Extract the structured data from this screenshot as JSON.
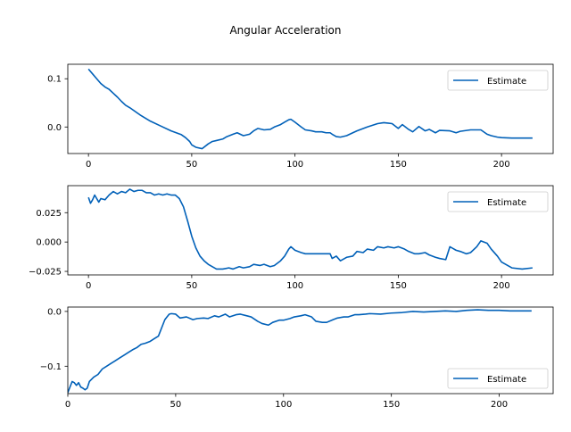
{
  "figure": {
    "title": "Angular Acceleration"
  },
  "colors": {
    "series": "#0060b8"
  },
  "chart_data": [
    {
      "type": "line",
      "title": "",
      "xlabel": "",
      "ylabel": "",
      "xlim": [
        -10,
        225
      ],
      "ylim": [
        -0.055,
        0.13
      ],
      "xticks": [
        0,
        50,
        100,
        150,
        200
      ],
      "yticks": [
        0.1,
        0.0
      ],
      "xtick_labels": [
        "0",
        "50",
        "100",
        "150",
        "200"
      ],
      "ytick_labels": [
        "0.1",
        "0.0"
      ],
      "legend": {
        "placement": "top-right",
        "labels": [
          "Estimate"
        ]
      },
      "grid": false,
      "series": [
        {
          "name": "Estimate",
          "x": [
            0,
            2,
            4,
            6,
            8,
            10,
            12,
            14,
            16,
            18,
            20,
            25,
            30,
            35,
            40,
            45,
            47,
            49,
            50,
            52,
            55,
            58,
            60,
            62,
            65,
            67,
            70,
            72,
            75,
            78,
            80,
            82,
            85,
            88,
            90,
            93,
            95,
            97,
            98,
            100,
            103,
            105,
            108,
            110,
            113,
            115,
            117,
            118,
            120,
            122,
            125,
            128,
            130,
            135,
            140,
            143,
            145,
            147,
            150,
            152,
            155,
            157,
            160,
            163,
            165,
            168,
            170,
            175,
            178,
            180,
            185,
            190,
            193,
            195,
            198,
            200,
            205,
            210,
            215
          ],
          "y": [
            0.12,
            0.11,
            0.1,
            0.09,
            0.083,
            0.078,
            0.07,
            0.062,
            0.053,
            0.045,
            0.04,
            0.025,
            0.012,
            0.002,
            -0.008,
            -0.016,
            -0.022,
            -0.03,
            -0.037,
            -0.042,
            -0.045,
            -0.035,
            -0.03,
            -0.028,
            -0.025,
            -0.02,
            -0.015,
            -0.012,
            -0.018,
            -0.015,
            -0.008,
            -0.003,
            -0.006,
            -0.005,
            0.0,
            0.005,
            0.01,
            0.015,
            0.016,
            0.01,
            0.0,
            -0.006,
            -0.008,
            -0.01,
            -0.01,
            -0.012,
            -0.012,
            -0.015,
            -0.02,
            -0.021,
            -0.018,
            -0.012,
            -0.008,
            0.0,
            0.007,
            0.009,
            0.008,
            0.007,
            -0.003,
            0.005,
            -0.005,
            -0.01,
            0.001,
            -0.008,
            -0.005,
            -0.012,
            -0.007,
            -0.008,
            -0.012,
            -0.009,
            -0.006,
            -0.006,
            -0.015,
            -0.018,
            -0.021,
            -0.022,
            -0.023,
            -0.023,
            -0.023
          ]
        }
      ]
    },
    {
      "type": "line",
      "title": "",
      "xlabel": "",
      "ylabel": "",
      "xlim": [
        -10,
        225
      ],
      "ylim": [
        -0.028,
        0.048
      ],
      "xticks": [
        0,
        50,
        100,
        150,
        200
      ],
      "yticks": [
        0.025,
        0.0,
        -0.025
      ],
      "xtick_labels": [
        "0",
        "50",
        "100",
        "150",
        "200"
      ],
      "ytick_labels": [
        "0.025",
        "0.000",
        "−0.025"
      ],
      "legend": {
        "placement": "top-right",
        "labels": [
          "Estimate"
        ]
      },
      "grid": false,
      "series": [
        {
          "name": "Estimate",
          "x": [
            0,
            1,
            2,
            3,
            4,
            5,
            6,
            8,
            10,
            12,
            14,
            16,
            18,
            20,
            22,
            24,
            26,
            28,
            30,
            32,
            34,
            36,
            38,
            40,
            42,
            44,
            46,
            48,
            50,
            52,
            54,
            56,
            58,
            60,
            62,
            65,
            68,
            70,
            73,
            75,
            78,
            80,
            83,
            85,
            88,
            90,
            93,
            95,
            97,
            98,
            100,
            103,
            105,
            110,
            115,
            117,
            118,
            120,
            122,
            125,
            128,
            130,
            133,
            135,
            138,
            140,
            143,
            145,
            148,
            150,
            153,
            155,
            158,
            160,
            163,
            165,
            168,
            170,
            173,
            175,
            178,
            180,
            183,
            185,
            188,
            190,
            193,
            195,
            198,
            200,
            205,
            210,
            215
          ],
          "y": [
            0.038,
            0.033,
            0.036,
            0.04,
            0.037,
            0.034,
            0.037,
            0.036,
            0.04,
            0.043,
            0.041,
            0.043,
            0.042,
            0.045,
            0.043,
            0.044,
            0.044,
            0.042,
            0.042,
            0.04,
            0.041,
            0.04,
            0.041,
            0.04,
            0.04,
            0.037,
            0.03,
            0.018,
            0.005,
            -0.005,
            -0.012,
            -0.016,
            -0.019,
            -0.021,
            -0.023,
            -0.023,
            -0.022,
            -0.023,
            -0.021,
            -0.022,
            -0.021,
            -0.019,
            -0.02,
            -0.019,
            -0.021,
            -0.02,
            -0.016,
            -0.012,
            -0.006,
            -0.004,
            -0.007,
            -0.009,
            -0.01,
            -0.01,
            -0.01,
            -0.01,
            -0.014,
            -0.012,
            -0.016,
            -0.013,
            -0.012,
            -0.008,
            -0.009,
            -0.006,
            -0.007,
            -0.004,
            -0.005,
            -0.004,
            -0.005,
            -0.004,
            -0.006,
            -0.008,
            -0.01,
            -0.01,
            -0.009,
            -0.011,
            -0.013,
            -0.014,
            -0.015,
            -0.004,
            -0.007,
            -0.008,
            -0.01,
            -0.009,
            -0.004,
            0.001,
            -0.001,
            -0.006,
            -0.012,
            -0.017,
            -0.022,
            -0.023,
            -0.022
          ]
        }
      ]
    },
    {
      "type": "line",
      "title": "",
      "xlabel": "",
      "ylabel": "",
      "xlim": [
        0,
        225
      ],
      "ylim": [
        -0.15,
        0.008
      ],
      "xticks": [
        0,
        50,
        100,
        150,
        200
      ],
      "yticks": [
        0.0,
        -0.1
      ],
      "xtick_labels": [
        "0",
        "50",
        "100",
        "150",
        "200"
      ],
      "ytick_labels": [
        "0.0",
        "−0.1"
      ],
      "legend": {
        "placement": "bottom-right",
        "labels": [
          "Estimate"
        ]
      },
      "grid": false,
      "series": [
        {
          "name": "Estimate",
          "x": [
            0,
            1,
            2,
            3,
            4,
            5,
            6,
            7,
            8,
            9,
            10,
            12,
            14,
            16,
            18,
            20,
            22,
            24,
            26,
            28,
            30,
            32,
            34,
            36,
            38,
            40,
            42,
            43,
            44,
            45,
            46,
            47,
            48,
            50,
            52,
            55,
            58,
            60,
            63,
            65,
            68,
            70,
            73,
            75,
            78,
            80,
            83,
            85,
            88,
            90,
            93,
            95,
            98,
            100,
            103,
            105,
            108,
            110,
            113,
            115,
            118,
            120,
            123,
            125,
            128,
            130,
            133,
            135,
            138,
            140,
            145,
            150,
            155,
            160,
            165,
            170,
            175,
            180,
            185,
            190,
            195,
            200,
            205,
            210,
            215
          ],
          "y": [
            -0.148,
            -0.138,
            -0.128,
            -0.13,
            -0.135,
            -0.13,
            -0.138,
            -0.14,
            -0.143,
            -0.14,
            -0.128,
            -0.12,
            -0.115,
            -0.105,
            -0.1,
            -0.095,
            -0.09,
            -0.085,
            -0.08,
            -0.075,
            -0.07,
            -0.066,
            -0.06,
            -0.058,
            -0.055,
            -0.05,
            -0.045,
            -0.035,
            -0.025,
            -0.015,
            -0.01,
            -0.005,
            -0.004,
            -0.005,
            -0.012,
            -0.01,
            -0.015,
            -0.013,
            -0.012,
            -0.013,
            -0.008,
            -0.01,
            -0.005,
            -0.01,
            -0.006,
            -0.005,
            -0.008,
            -0.01,
            -0.018,
            -0.022,
            -0.025,
            -0.02,
            -0.016,
            -0.016,
            -0.013,
            -0.01,
            -0.008,
            -0.006,
            -0.01,
            -0.018,
            -0.02,
            -0.02,
            -0.015,
            -0.012,
            -0.01,
            -0.01,
            -0.006,
            -0.006,
            -0.005,
            -0.004,
            -0.005,
            -0.003,
            -0.002,
            0.0,
            -0.001,
            0.0,
            0.001,
            0.0,
            0.002,
            0.003,
            0.002,
            0.002,
            0.001,
            0.001,
            0.001
          ]
        }
      ]
    }
  ]
}
